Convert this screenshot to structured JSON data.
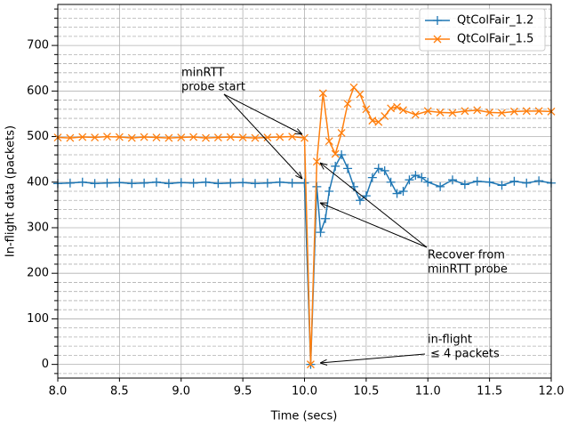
{
  "chart_data": {
    "type": "line",
    "xlabel": "Time (secs)",
    "ylabel": "In-flight data (packets)",
    "xlim": [
      8.0,
      12.0
    ],
    "ylim": [
      -30,
      790
    ],
    "xticks": [
      {
        "value": 8.0,
        "label": "8.0"
      },
      {
        "value": 8.5,
        "label": "8.5"
      },
      {
        "value": 9.0,
        "label": "9.0"
      },
      {
        "value": 9.5,
        "label": "9.5"
      },
      {
        "value": 10.0,
        "label": "10.0"
      },
      {
        "value": 10.5,
        "label": "10.5"
      },
      {
        "value": 11.0,
        "label": "11.0"
      },
      {
        "value": 11.5,
        "label": "11.5"
      },
      {
        "value": 12.0,
        "label": "12.0"
      }
    ],
    "yticks": [
      0,
      100,
      200,
      300,
      400,
      500,
      600,
      700
    ],
    "yminorticks": [
      -20,
      20,
      40,
      60,
      80,
      120,
      140,
      160,
      180,
      220,
      240,
      260,
      280,
      320,
      340,
      360,
      380,
      420,
      440,
      460,
      480,
      520,
      540,
      560,
      580,
      620,
      640,
      660,
      680,
      720,
      740,
      760,
      780
    ],
    "grid": true,
    "legend": "upper right",
    "series": [
      {
        "name": "QtColFair_1.2",
        "color": "#1f77b4",
        "marker": "plus",
        "x": [
          8.0,
          8.1,
          8.2,
          8.3,
          8.4,
          8.5,
          8.6,
          8.7,
          8.8,
          8.9,
          9.0,
          9.1,
          9.2,
          9.3,
          9.4,
          9.5,
          9.6,
          9.7,
          9.8,
          9.9,
          10.0,
          10.05,
          10.1,
          10.13,
          10.17,
          10.2,
          10.25,
          10.3,
          10.35,
          10.4,
          10.45,
          10.5,
          10.55,
          10.6,
          10.65,
          10.7,
          10.75,
          10.8,
          10.85,
          10.9,
          10.95,
          11.0,
          11.1,
          11.2,
          11.3,
          11.4,
          11.5,
          11.6,
          11.7,
          11.8,
          11.9,
          12.0
        ],
        "values": [
          397,
          398,
          400,
          397,
          398,
          399,
          397,
          398,
          400,
          397,
          399,
          398,
          400,
          397,
          398,
          399,
          397,
          398,
          400,
          398,
          398,
          0,
          390,
          290,
          320,
          380,
          435,
          460,
          430,
          390,
          360,
          370,
          410,
          430,
          425,
          400,
          375,
          380,
          405,
          415,
          410,
          400,
          390,
          405,
          395,
          402,
          400,
          393,
          402,
          398,
          403,
          398
        ]
      },
      {
        "name": "QtColFair_1.5",
        "color": "#ff7f0e",
        "marker": "x",
        "x": [
          8.0,
          8.1,
          8.2,
          8.3,
          8.4,
          8.5,
          8.6,
          8.7,
          8.8,
          8.9,
          9.0,
          9.1,
          9.2,
          9.3,
          9.4,
          9.5,
          9.6,
          9.7,
          9.8,
          9.9,
          10.0,
          10.05,
          10.1,
          10.15,
          10.2,
          10.25,
          10.3,
          10.35,
          10.4,
          10.45,
          10.5,
          10.55,
          10.6,
          10.65,
          10.7,
          10.75,
          10.8,
          10.9,
          11.0,
          11.1,
          11.2,
          11.3,
          11.4,
          11.5,
          11.6,
          11.7,
          11.8,
          11.9,
          12.0
        ],
        "values": [
          498,
          497,
          499,
          498,
          500,
          499,
          497,
          499,
          498,
          497,
          498,
          499,
          497,
          498,
          499,
          498,
          497,
          498,
          499,
          500,
          497,
          0,
          445,
          595,
          490,
          462,
          508,
          572,
          608,
          593,
          560,
          535,
          532,
          545,
          562,
          565,
          558,
          548,
          556,
          553,
          552,
          556,
          558,
          553,
          552,
          555,
          556,
          556,
          555
        ]
      }
    ],
    "annotations": [
      {
        "lines": [
          "minRTT",
          "probe start"
        ]
      },
      {
        "lines": [
          "Recover from",
          "minRTT probe"
        ]
      },
      {
        "lines": [
          "in-flight",
          "≤ 4 packets"
        ]
      }
    ]
  }
}
